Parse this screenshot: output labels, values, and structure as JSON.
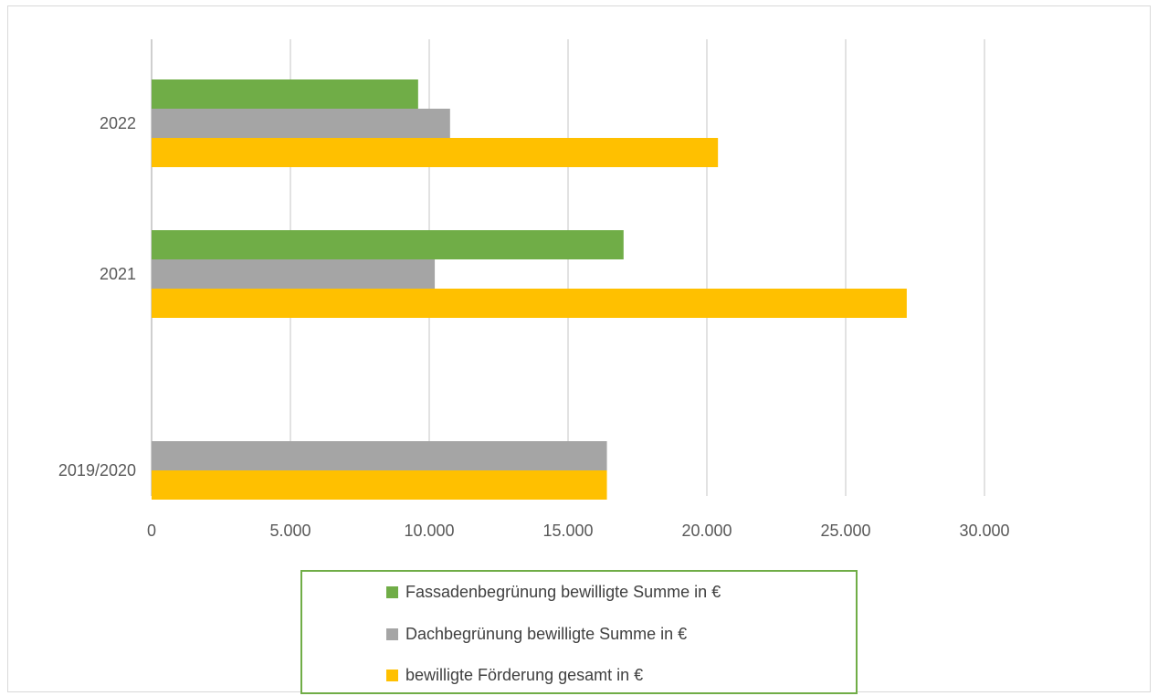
{
  "chart_data": {
    "type": "bar",
    "orientation": "horizontal",
    "categories": [
      "2022",
      "2021",
      "2019/2020"
    ],
    "series": [
      {
        "name": "Fassadenbegrünung bewilligte Summe in €",
        "color": "#70ad47",
        "values": [
          9600,
          17000,
          null
        ]
      },
      {
        "name": "Dachbegrünung bewilligte Summe in €",
        "color": "#a5a5a5",
        "values": [
          10750,
          10200,
          16400
        ]
      },
      {
        "name": "bewilligte Förderung gesamt in €",
        "color": "#ffc000",
        "values": [
          20400,
          27200,
          16400
        ]
      }
    ],
    "x_ticks": [
      "0",
      "5.000",
      "10.000",
      "15.000",
      "20.000",
      "25.000",
      "30.000"
    ],
    "xlim": [
      0,
      30000
    ],
    "grid": true,
    "legend_position": "bottom"
  }
}
